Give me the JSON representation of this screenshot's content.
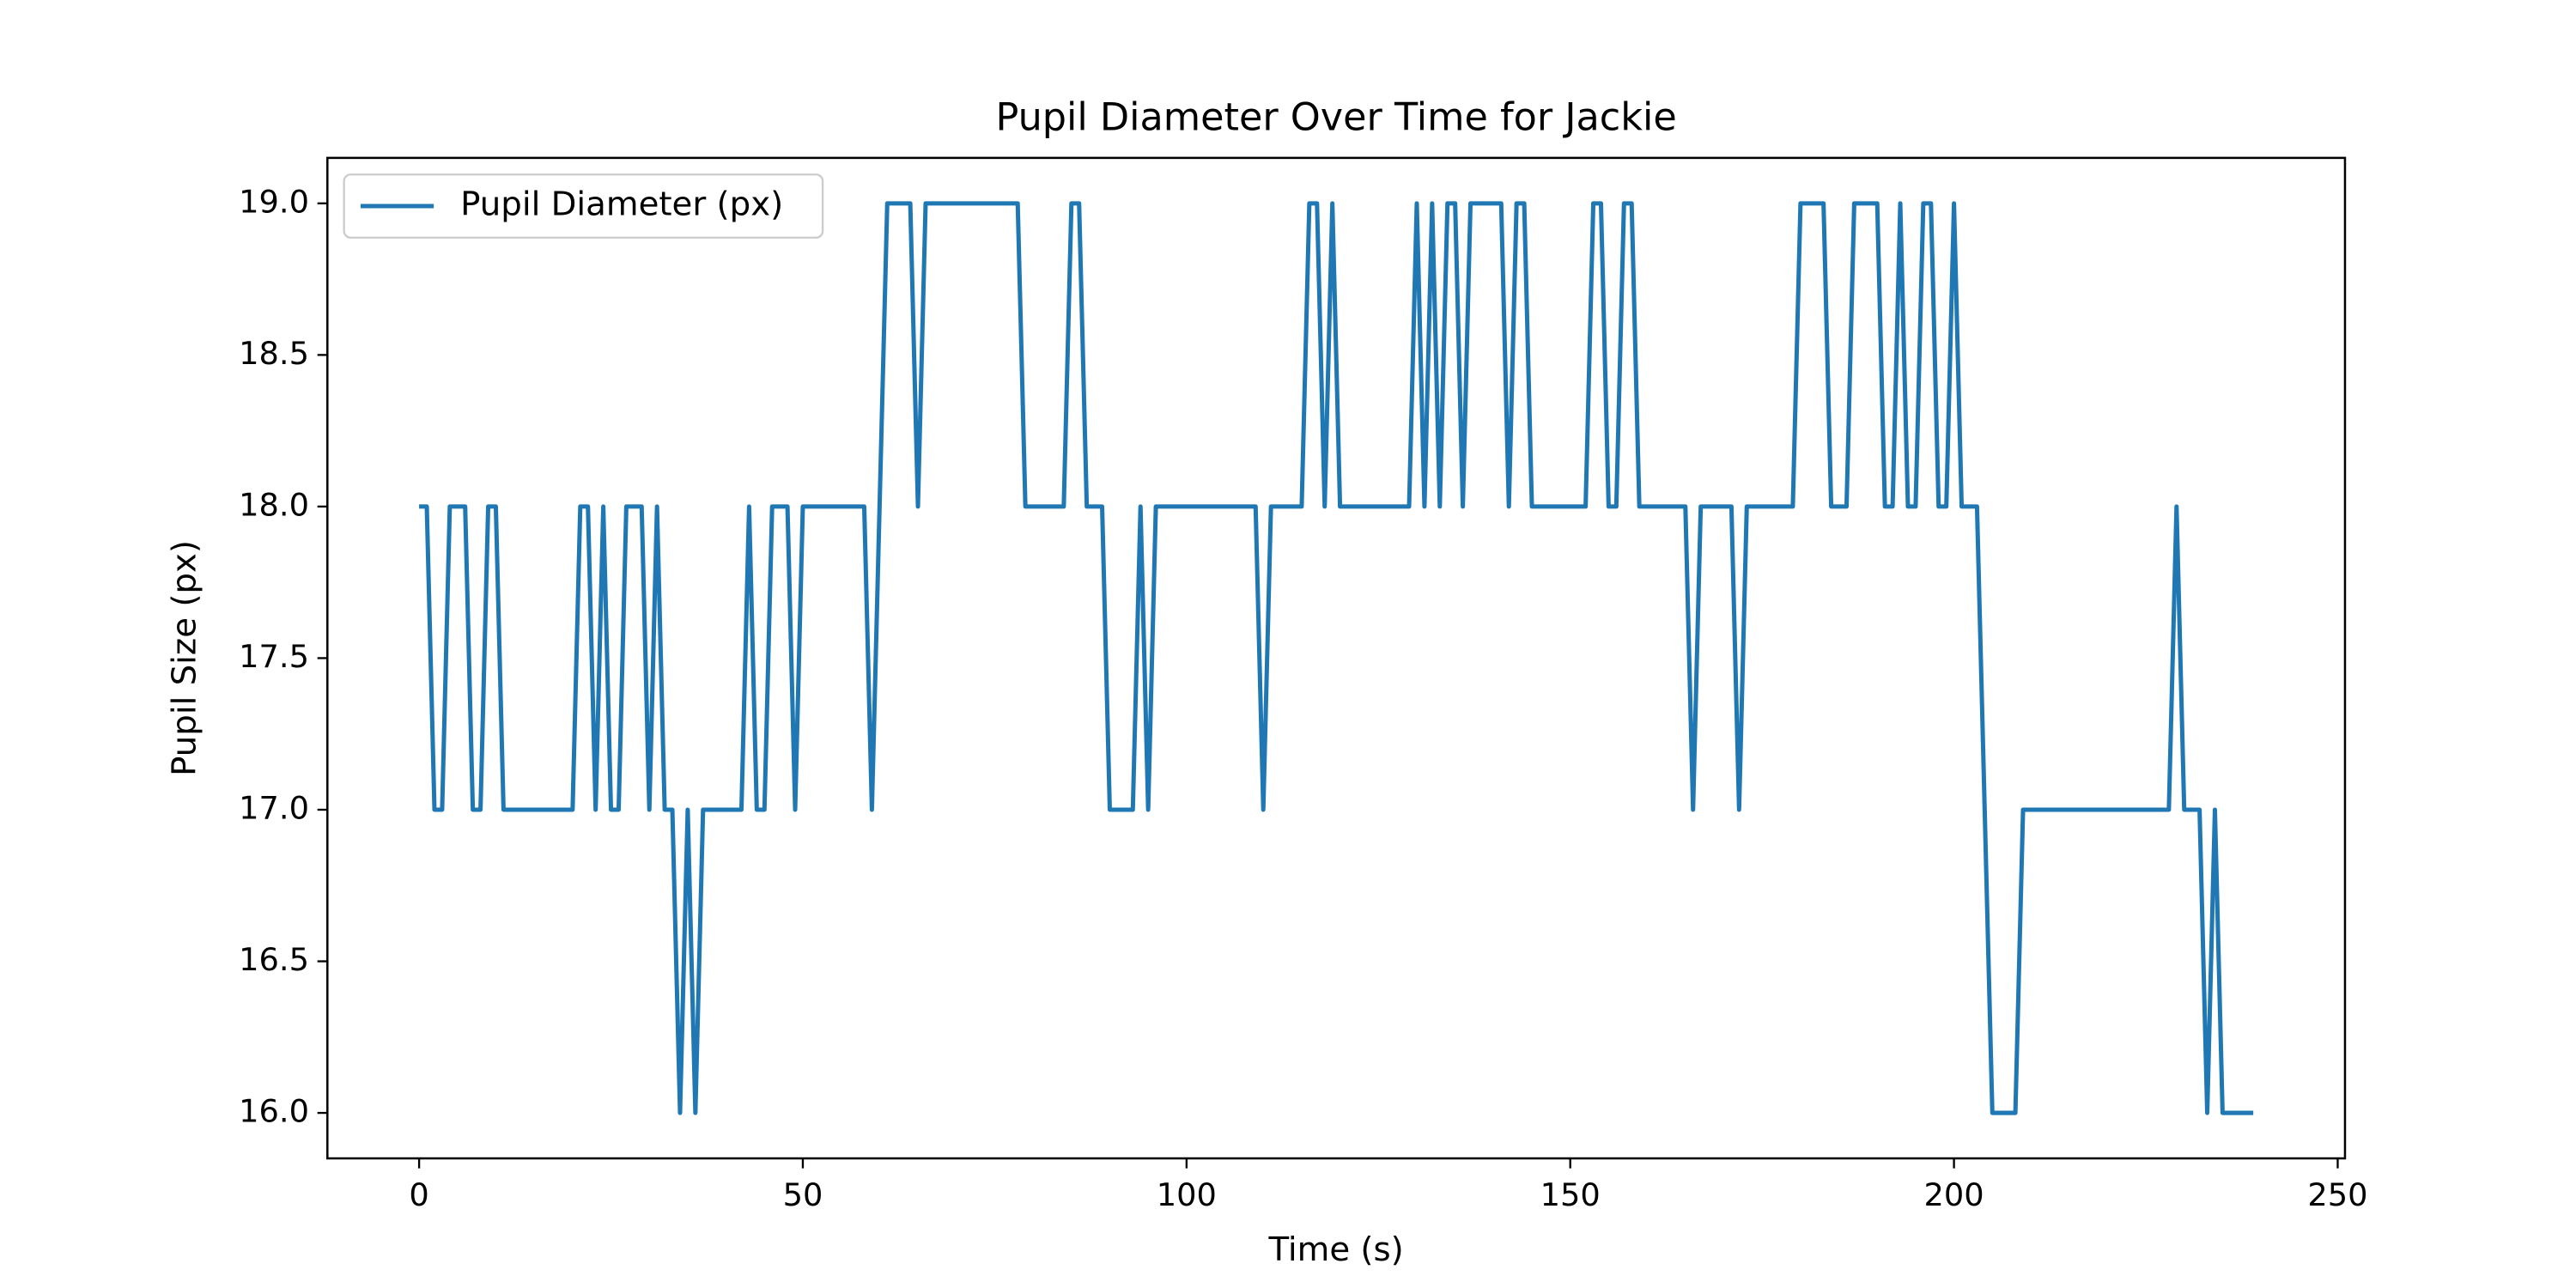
{
  "chart_data": {
    "type": "line",
    "title": "Pupil Diameter Over Time for Jackie",
    "xlabel": "Time (s)",
    "ylabel": "Pupil Size (px)",
    "x": [
      0,
      1,
      2,
      3,
      4,
      5,
      6,
      7,
      8,
      9,
      10,
      11,
      12,
      13,
      14,
      15,
      16,
      17,
      18,
      19,
      20,
      21,
      22,
      23,
      24,
      25,
      26,
      27,
      28,
      29,
      30,
      31,
      32,
      33,
      34,
      35,
      36,
      37,
      38,
      39,
      40,
      41,
      42,
      43,
      44,
      45,
      46,
      47,
      48,
      49,
      50,
      51,
      52,
      53,
      54,
      55,
      56,
      57,
      58,
      59,
      60,
      61,
      62,
      63,
      64,
      65,
      66,
      67,
      68,
      69,
      70,
      71,
      72,
      73,
      74,
      75,
      76,
      77,
      78,
      79,
      80,
      81,
      82,
      83,
      84,
      85,
      86,
      87,
      88,
      89,
      90,
      91,
      92,
      93,
      94,
      95,
      96,
      97,
      98,
      99,
      100,
      101,
      102,
      103,
      104,
      105,
      106,
      107,
      108,
      109,
      110,
      111,
      112,
      113,
      114,
      115,
      116,
      117,
      118,
      119,
      120,
      121,
      122,
      123,
      124,
      125,
      126,
      127,
      128,
      129,
      130,
      131,
      132,
      133,
      134,
      135,
      136,
      137,
      138,
      139,
      140,
      141,
      142,
      143,
      144,
      145,
      146,
      147,
      148,
      149,
      150,
      151,
      152,
      153,
      154,
      155,
      156,
      157,
      158,
      159,
      160,
      161,
      162,
      163,
      164,
      165,
      166,
      167,
      168,
      169,
      170,
      171,
      172,
      173,
      174,
      175,
      176,
      177,
      178,
      179,
      180,
      181,
      182,
      183,
      184,
      185,
      186,
      187,
      188,
      189,
      190,
      191,
      192,
      193,
      194,
      195,
      196,
      197,
      198,
      199,
      200,
      201,
      202,
      203,
      204,
      205,
      206,
      207,
      208,
      209,
      210,
      211,
      212,
      213,
      214,
      215,
      216,
      217,
      218,
      219,
      220,
      221,
      222,
      223,
      224,
      225,
      226,
      227,
      228,
      229,
      230,
      231,
      232,
      233,
      234,
      235,
      236,
      237,
      238,
      239
    ],
    "series": [
      {
        "name": "Pupil Diameter (px)",
        "color": "#1f77b4",
        "values": [
          18,
          18,
          17,
          17,
          18,
          18,
          18,
          17,
          17,
          18,
          18,
          17,
          17,
          17,
          17,
          17,
          17,
          17,
          17,
          17,
          17,
          18,
          18,
          17,
          18,
          17,
          17,
          18,
          18,
          18,
          17,
          18,
          17,
          17,
          16,
          17,
          16,
          17,
          17,
          17,
          17,
          17,
          17,
          18,
          17,
          17,
          18,
          18,
          18,
          17,
          18,
          18,
          18,
          18,
          18,
          18,
          18,
          18,
          18,
          17,
          18,
          19,
          19,
          19,
          19,
          18,
          19,
          19,
          19,
          19,
          19,
          19,
          19,
          19,
          19,
          19,
          19,
          19,
          19,
          18,
          18,
          18,
          18,
          18,
          18,
          19,
          19,
          18,
          18,
          18,
          17,
          17,
          17,
          17,
          18,
          17,
          18,
          18,
          18,
          18,
          18,
          18,
          18,
          18,
          18,
          18,
          18,
          18,
          18,
          18,
          17,
          18,
          18,
          18,
          18,
          18,
          19,
          19,
          18,
          19,
          18,
          18,
          18,
          18,
          18,
          18,
          18,
          18,
          18,
          18,
          19,
          18,
          19,
          18,
          19,
          19,
          18,
          19,
          19,
          19,
          19,
          19,
          18,
          19,
          19,
          18,
          18,
          18,
          18,
          18,
          18,
          18,
          18,
          19,
          19,
          18,
          18,
          19,
          19,
          18,
          18,
          18,
          18,
          18,
          18,
          18,
          17,
          18,
          18,
          18,
          18,
          18,
          17,
          18,
          18,
          18,
          18,
          18,
          18,
          18,
          19,
          19,
          19,
          19,
          18,
          18,
          18,
          19,
          19,
          19,
          19,
          18,
          18,
          19,
          18,
          18,
          19,
          19,
          18,
          18,
          19,
          18,
          18,
          18,
          17,
          16,
          16,
          16,
          16,
          17,
          17,
          17,
          17,
          17,
          17,
          17,
          17,
          17,
          17,
          17,
          17,
          17,
          17,
          17,
          17,
          17,
          17,
          17,
          17,
          18,
          17,
          17,
          17,
          16,
          17,
          16,
          16,
          16,
          16,
          16
        ]
      }
    ],
    "xlim": [
      -11.95,
      250.95
    ],
    "ylim": [
      15.85,
      19.15
    ],
    "xticks": [
      0,
      50,
      100,
      150,
      200,
      250
    ],
    "yticks": [
      {
        "value": 16,
        "label": "16.0"
      },
      {
        "value": 16.5,
        "label": "16.5"
      },
      {
        "value": 17,
        "label": "17.0"
      },
      {
        "value": 17.5,
        "label": "17.5"
      },
      {
        "value": 18,
        "label": "18.0"
      },
      {
        "value": 18.5,
        "label": "18.5"
      },
      {
        "value": 19,
        "label": "19.0"
      }
    ],
    "legend": "upper left",
    "grid": false
  }
}
